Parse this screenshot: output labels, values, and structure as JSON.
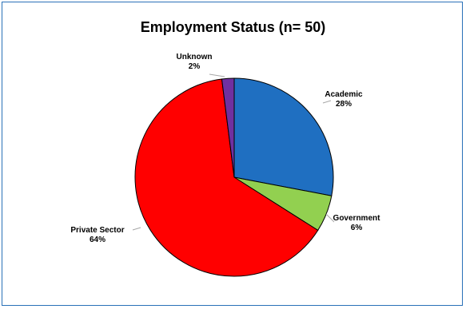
{
  "chart_data": {
    "type": "pie",
    "title": "Employment Status (n= 50)",
    "slices": [
      {
        "name": "Academic",
        "value": 28,
        "label": "28%",
        "color": "#1f6fc1"
      },
      {
        "name": "Government",
        "value": 6,
        "label": "6%",
        "color": "#92d050"
      },
      {
        "name": "Private Sector",
        "value": 64,
        "label": "64%",
        "color": "#ff0000"
      },
      {
        "name": "Unknown",
        "value": 2,
        "label": "2%",
        "color": "#7030a0"
      }
    ],
    "legend": "none",
    "start_angle_deg": 0,
    "direction": "clockwise",
    "label_color": "#000000",
    "leader_line_color": "#a6a6a6"
  }
}
